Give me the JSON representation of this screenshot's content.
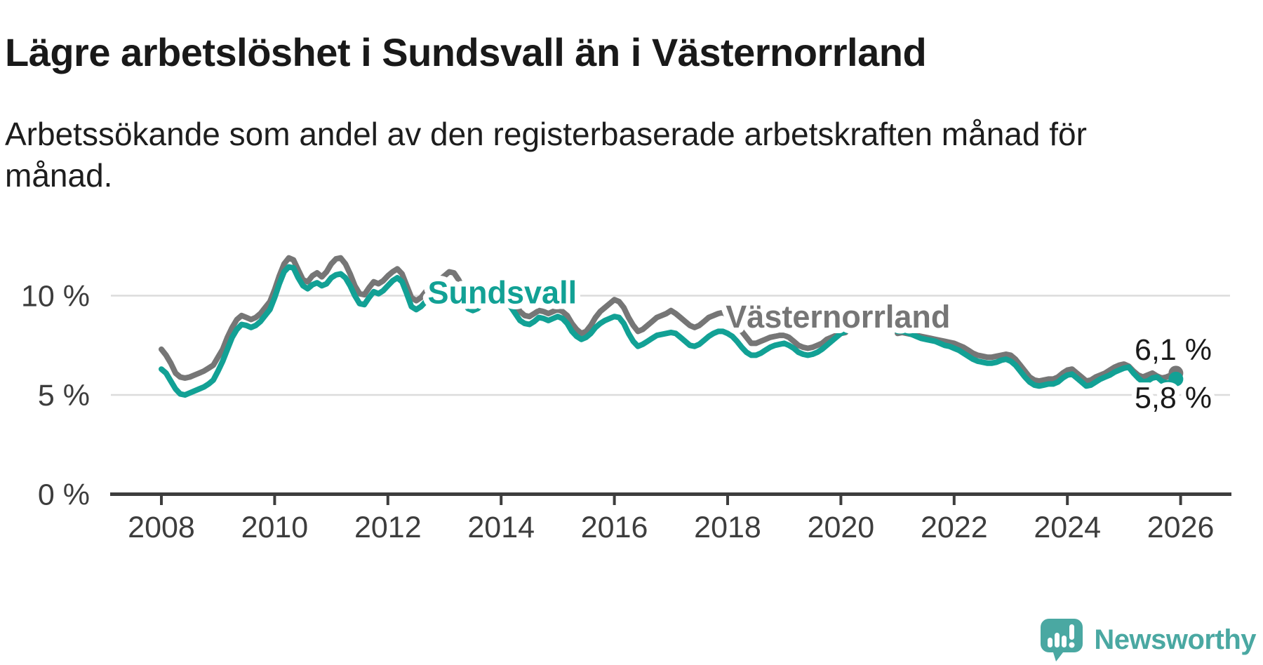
{
  "title": "Lägre arbetslöshet i Sundsvall än i Västernorrland",
  "subtitle": {
    "line1": "Arbetssökande som andel av den registerbaserade arbetskraften månad för",
    "line2": "månad."
  },
  "colors": {
    "sundsvall": "#12a195",
    "vasternorrland": "#767676",
    "grid": "#dcdcdc",
    "axis": "#3d3d3d",
    "tick_text": "#3d3d3d",
    "end_label_text": "#1a1a1a",
    "logo_teal": "#4aa8a2",
    "background": "#ffffff"
  },
  "chart_data": {
    "type": "line",
    "title": "Lägre arbetslöshet i Sundsvall än i Västernorrland",
    "subtitle": "Arbetssökande som andel av den registerbaserade arbetskraften månad för månad.",
    "x_unit": "month",
    "x_start": "2008-01",
    "x_end": "2025-12",
    "x_tick_labels": [
      "2008",
      "2010",
      "2012",
      "2014",
      "2016",
      "2018",
      "2020",
      "2022",
      "2024",
      "2026"
    ],
    "x_tick_years": [
      2008,
      2010,
      2012,
      2014,
      2016,
      2018,
      2020,
      2022,
      2024,
      2026
    ],
    "y_ticks": [
      {
        "value": 0,
        "label": "0 %"
      },
      {
        "value": 5,
        "label": "5 %"
      },
      {
        "value": 10,
        "label": "10 %"
      }
    ],
    "ylim": [
      0,
      12.8
    ],
    "grid": true,
    "legend_position": "inline-labels",
    "series": [
      {
        "name": "Västernorrland",
        "color": "#767676",
        "latest_value": 6.1,
        "end_label": "6,1 %",
        "values": [
          7.3,
          7.0,
          6.6,
          6.1,
          5.9,
          5.85,
          5.9,
          6.0,
          6.1,
          6.2,
          6.35,
          6.5,
          6.9,
          7.3,
          7.9,
          8.4,
          8.8,
          9.0,
          8.9,
          8.8,
          8.9,
          9.1,
          9.4,
          9.7,
          10.3,
          11.0,
          11.6,
          11.9,
          11.8,
          11.3,
          10.8,
          10.7,
          11.0,
          11.15,
          10.95,
          11.2,
          11.6,
          11.85,
          11.9,
          11.6,
          11.1,
          10.5,
          10.1,
          10.05,
          10.4,
          10.7,
          10.6,
          10.75,
          11.0,
          11.2,
          11.35,
          11.1,
          10.5,
          9.9,
          9.75,
          9.9,
          10.2,
          10.5,
          10.6,
          10.8,
          11.0,
          11.2,
          11.15,
          10.8,
          10.3,
          9.9,
          9.8,
          9.9,
          10.1,
          10.2,
          10.1,
          10.2,
          10.3,
          10.2,
          10.0,
          9.6,
          9.2,
          9.0,
          8.95,
          9.1,
          9.25,
          9.2,
          9.1,
          9.2,
          9.3,
          9.2,
          9.0,
          8.6,
          8.3,
          8.1,
          8.2,
          8.5,
          8.9,
          9.2,
          9.4,
          9.6,
          9.8,
          9.7,
          9.4,
          8.9,
          8.5,
          8.2,
          8.3,
          8.5,
          8.7,
          8.9,
          9.0,
          9.1,
          9.25,
          9.1,
          8.9,
          8.7,
          8.5,
          8.4,
          8.5,
          8.7,
          8.9,
          9.0,
          9.1,
          9.15,
          9.0,
          8.8,
          8.5,
          8.2,
          7.9,
          7.6,
          7.6,
          7.7,
          7.8,
          7.9,
          7.95,
          8.0,
          8.0,
          7.9,
          7.7,
          7.5,
          7.4,
          7.35,
          7.4,
          7.5,
          7.6,
          7.8,
          7.9,
          8.0,
          8.1,
          8.15,
          null,
          null,
          null,
          null,
          null,
          null,
          null,
          null,
          null,
          null,
          8.1,
          8.15,
          8.1,
          8.05,
          8.0,
          7.95,
          7.9,
          7.85,
          7.8,
          7.75,
          7.7,
          7.65,
          7.6,
          7.5,
          7.4,
          7.25,
          7.1,
          7.0,
          6.95,
          6.9,
          6.9,
          6.95,
          7.0,
          7.05,
          7.0,
          6.8,
          6.5,
          6.2,
          5.9,
          5.75,
          5.7,
          5.75,
          5.8,
          5.8,
          5.9,
          6.1,
          6.25,
          6.3,
          6.1,
          5.9,
          5.7,
          5.75,
          5.9,
          6.0,
          6.1,
          6.25,
          6.4,
          6.5,
          6.55,
          6.45,
          6.2,
          6.0,
          5.9,
          6.0,
          6.1,
          5.95,
          5.85,
          5.9,
          6.0,
          6.1
        ]
      },
      {
        "name": "Sundsvall",
        "color": "#12a195",
        "latest_value": 5.8,
        "end_label": "5,8 %",
        "values": [
          6.3,
          6.1,
          5.7,
          5.3,
          5.05,
          5.0,
          5.1,
          5.2,
          5.3,
          5.4,
          5.55,
          5.75,
          6.2,
          6.7,
          7.3,
          7.9,
          8.3,
          8.55,
          8.5,
          8.4,
          8.5,
          8.7,
          9.0,
          9.3,
          9.9,
          10.6,
          11.2,
          11.45,
          11.4,
          10.9,
          10.5,
          10.35,
          10.55,
          10.65,
          10.5,
          10.6,
          10.9,
          11.05,
          11.1,
          10.9,
          10.5,
          10.0,
          9.6,
          9.55,
          9.9,
          10.2,
          10.1,
          10.25,
          10.5,
          10.75,
          10.9,
          10.7,
          10.1,
          9.45,
          9.3,
          9.45,
          9.7,
          10.0,
          10.1,
          10.2,
          10.4,
          10.55,
          10.5,
          10.2,
          9.7,
          9.35,
          9.25,
          9.35,
          9.55,
          9.65,
          9.55,
          9.65,
          9.75,
          9.65,
          9.45,
          9.1,
          8.75,
          8.6,
          8.55,
          8.7,
          8.9,
          8.85,
          8.75,
          8.85,
          8.95,
          8.85,
          8.6,
          8.2,
          7.95,
          7.8,
          7.9,
          8.1,
          8.4,
          8.6,
          8.75,
          8.85,
          8.95,
          8.9,
          8.6,
          8.1,
          7.7,
          7.45,
          7.55,
          7.7,
          7.85,
          8.0,
          8.05,
          8.1,
          8.15,
          8.1,
          7.9,
          7.7,
          7.5,
          7.45,
          7.55,
          7.75,
          7.95,
          8.1,
          8.2,
          8.2,
          8.1,
          7.95,
          7.7,
          7.4,
          7.15,
          7.0,
          7.0,
          7.1,
          7.25,
          7.4,
          7.5,
          7.55,
          7.6,
          7.5,
          7.35,
          7.15,
          7.05,
          7.0,
          7.05,
          7.15,
          7.3,
          7.5,
          7.7,
          7.9,
          8.1,
          8.2,
          null,
          null,
          null,
          null,
          null,
          null,
          null,
          null,
          null,
          null,
          8.2,
          8.2,
          8.15,
          8.05,
          7.95,
          7.85,
          7.8,
          7.75,
          7.7,
          7.6,
          7.5,
          7.45,
          7.35,
          7.25,
          7.1,
          6.95,
          6.8,
          6.7,
          6.65,
          6.6,
          6.6,
          6.65,
          6.75,
          6.8,
          6.7,
          6.5,
          6.2,
          5.9,
          5.65,
          5.5,
          5.45,
          5.5,
          5.55,
          5.55,
          5.65,
          5.85,
          6.0,
          6.05,
          5.85,
          5.65,
          5.45,
          5.5,
          5.65,
          5.8,
          5.9,
          6.0,
          6.15,
          6.25,
          6.35,
          6.4,
          6.1,
          5.85,
          5.65,
          5.7,
          5.85,
          5.9,
          5.7,
          5.6,
          5.65,
          5.8
        ]
      }
    ]
  },
  "logo": {
    "text": "Newsworthy"
  }
}
